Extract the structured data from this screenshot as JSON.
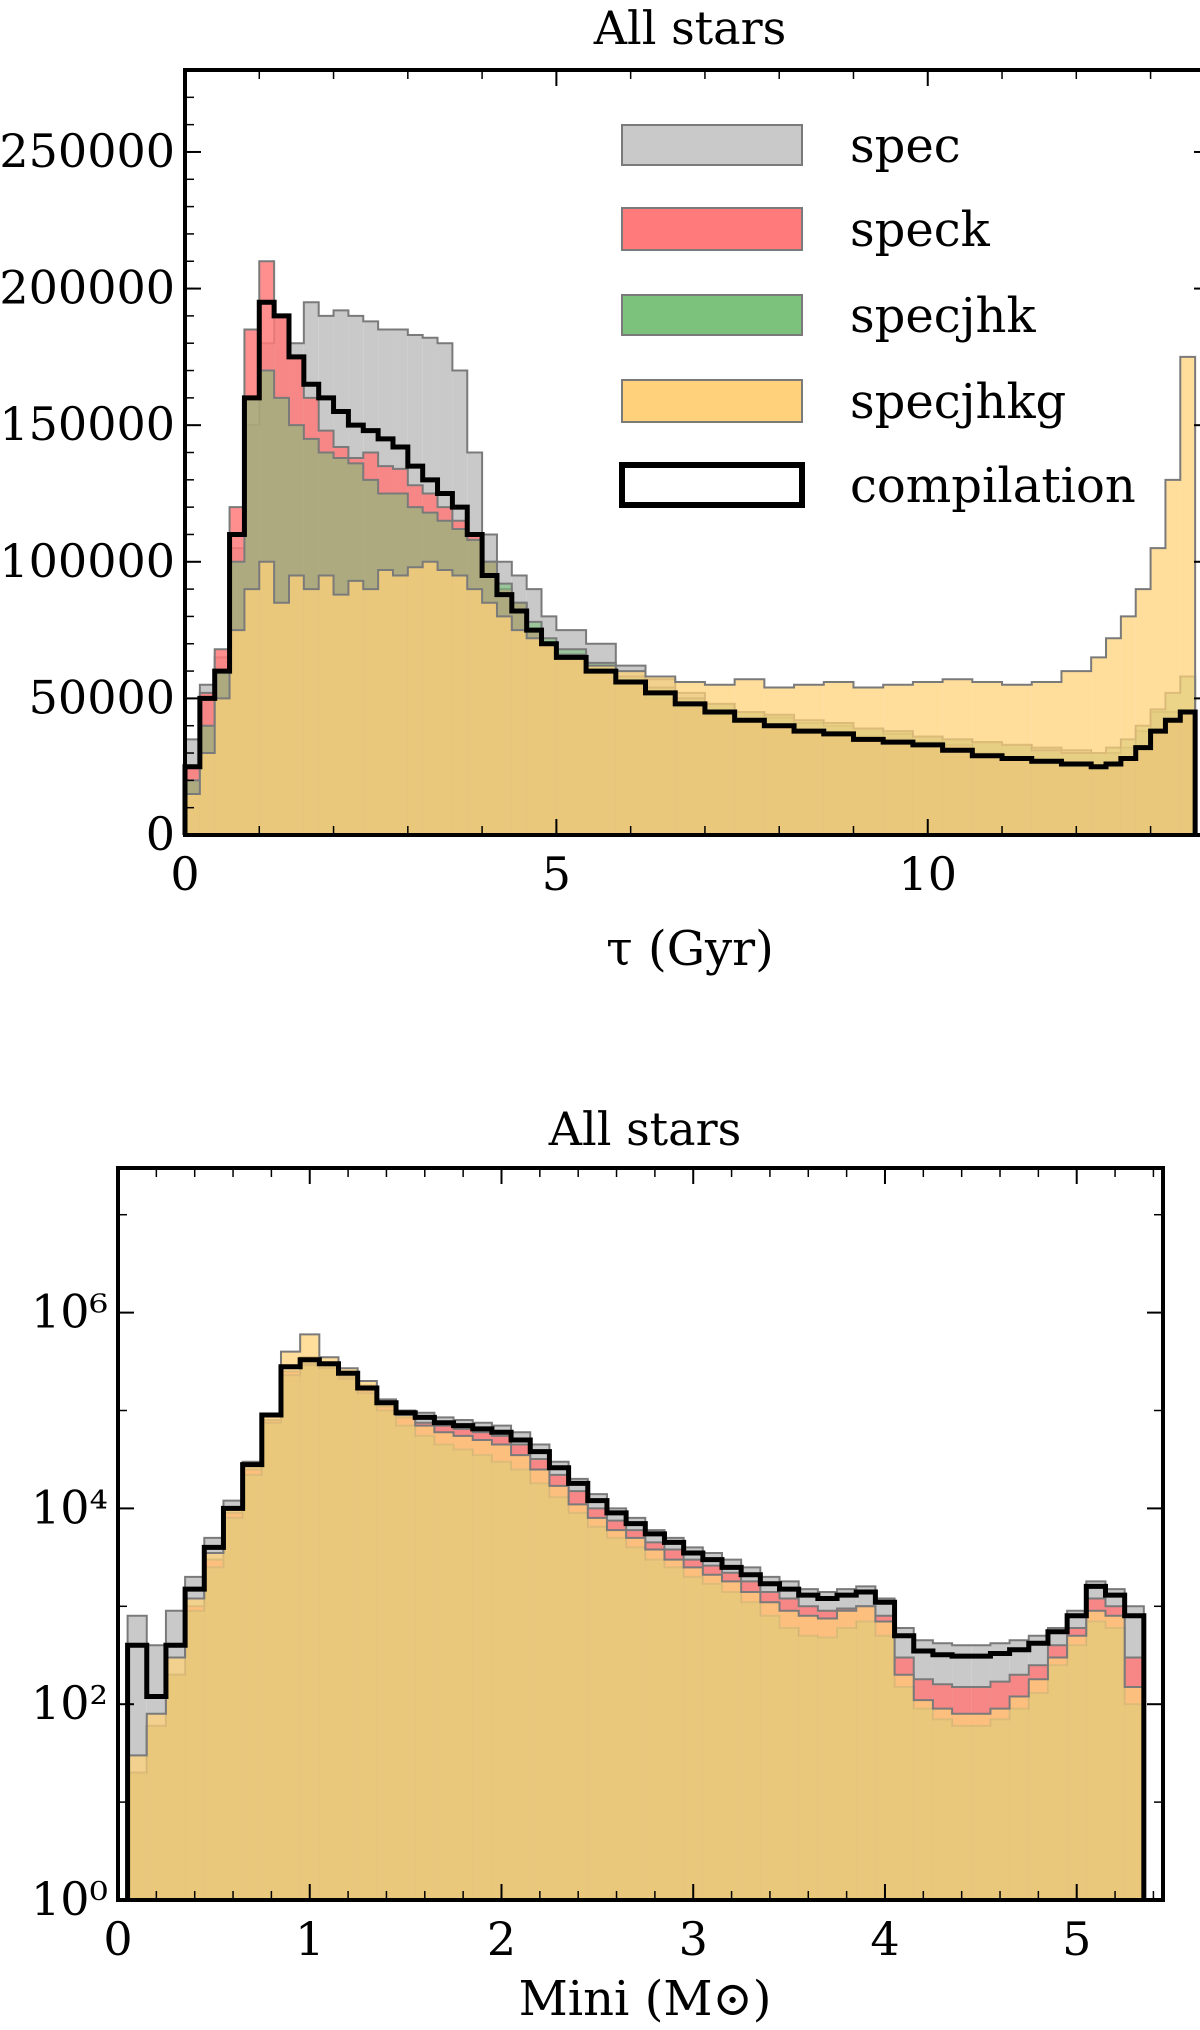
{
  "figure": {
    "colors": {
      "spec": "#c9c9c9",
      "speck": "#ff7b7b",
      "specjhk": "#7cc27c",
      "specjhkg": "#ffd17a",
      "compilation": "#000000",
      "edge": "#7a7a7a"
    }
  },
  "chart_data": [
    {
      "type": "area",
      "title": "All stars",
      "xlabel": "τ (Gyr)",
      "ylabel": "",
      "xlim": [
        0,
        13.8
      ],
      "ylim": [
        0,
        280000
      ],
      "xticks": [
        0,
        5,
        10
      ],
      "yticks": [
        0,
        50000,
        100000,
        150000,
        200000,
        250000
      ],
      "xtick_labels": [
        "0",
        "5",
        "10"
      ],
      "ytick_labels": [
        "0",
        "50000",
        "100000",
        "150000",
        "200000",
        "250000"
      ],
      "legend": {
        "placement": "top-right",
        "entries": [
          "spec",
          "speck",
          "specjhk",
          "specjhkg",
          "compilation"
        ]
      },
      "bin_edges": [
        0,
        0.2,
        0.4,
        0.6,
        0.8,
        1.0,
        1.2,
        1.4,
        1.6,
        1.8,
        2.0,
        2.2,
        2.4,
        2.6,
        2.8,
        3.0,
        3.2,
        3.4,
        3.6,
        3.8,
        4.0,
        4.2,
        4.4,
        4.6,
        4.8,
        5.0,
        5.4,
        5.8,
        6.2,
        6.6,
        7.0,
        7.4,
        7.8,
        8.2,
        8.6,
        9.0,
        9.4,
        9.8,
        10.2,
        10.6,
        11.0,
        11.4,
        11.8,
        12.2,
        12.4,
        12.6,
        12.8,
        13.0,
        13.2,
        13.4,
        13.6
      ],
      "series": [
        {
          "name": "spec",
          "values": [
            35000,
            55000,
            65000,
            105000,
            150000,
            180000,
            190000,
            180000,
            195000,
            190000,
            192000,
            190000,
            188000,
            185000,
            185000,
            183000,
            182000,
            180000,
            170000,
            140000,
            110000,
            100000,
            95000,
            90000,
            80000,
            75000,
            70000,
            62000,
            57000,
            52000,
            48000,
            45000,
            43000,
            41000,
            40000,
            39000,
            37000,
            36000,
            35000,
            34000,
            33000,
            32000,
            31000,
            30000,
            30000,
            32000,
            38000,
            45000,
            45000,
            45000
          ]
        },
        {
          "name": "speck",
          "values": [
            25000,
            52000,
            68000,
            120000,
            185000,
            210000,
            190000,
            175000,
            160000,
            148000,
            142000,
            138000,
            140000,
            135000,
            134000,
            128000,
            125000,
            120000,
            115000,
            110000,
            100000,
            90000,
            85000,
            75000,
            70000,
            65000,
            60000,
            56000,
            50000,
            47000,
            44000,
            42000,
            40000,
            38000,
            37000,
            36000,
            35000,
            34000,
            33000,
            30000,
            28000,
            26000,
            25000,
            24000,
            25000,
            28000,
            32000,
            38000,
            42000,
            45000
          ]
        },
        {
          "name": "specjhk",
          "values": [
            20000,
            40000,
            60000,
            100000,
            160000,
            170000,
            160000,
            150000,
            145000,
            140000,
            138000,
            136000,
            130000,
            125000,
            125000,
            120000,
            118000,
            115000,
            112000,
            108000,
            100000,
            92000,
            85000,
            78000,
            72000,
            68000,
            63000,
            58000,
            54000,
            50000,
            48000,
            45000,
            44000,
            42000,
            41000,
            39000,
            38000,
            36000,
            35000,
            34000,
            33000,
            31000,
            30000,
            30000,
            32000,
            35000,
            40000,
            46000,
            52000,
            58000
          ]
        },
        {
          "name": "specjhkg",
          "values": [
            15000,
            30000,
            50000,
            75000,
            90000,
            100000,
            85000,
            95000,
            90000,
            95000,
            88000,
            93000,
            90000,
            97000,
            95000,
            98000,
            100000,
            97000,
            95000,
            90000,
            85000,
            80000,
            75000,
            72000,
            70000,
            66000,
            62000,
            60000,
            58000,
            56000,
            55000,
            57000,
            54000,
            55000,
            56000,
            54000,
            55000,
            56000,
            57000,
            56000,
            55000,
            56000,
            60000,
            65000,
            72000,
            80000,
            90000,
            105000,
            130000,
            175000
          ]
        },
        {
          "name": "compilation",
          "values": [
            25000,
            50000,
            60000,
            110000,
            160000,
            195000,
            190000,
            175000,
            165000,
            160000,
            155000,
            150000,
            148000,
            145000,
            142000,
            135000,
            130000,
            125000,
            120000,
            110000,
            95000,
            88000,
            82000,
            75000,
            70000,
            65000,
            60000,
            56000,
            52000,
            48000,
            45000,
            42000,
            40000,
            38000,
            37000,
            35000,
            34000,
            33000,
            31000,
            29000,
            28000,
            27000,
            26000,
            25000,
            26000,
            28000,
            32000,
            38000,
            42000,
            45000
          ]
        }
      ]
    },
    {
      "type": "area",
      "title": "All stars",
      "xlabel": "Mini (M⊙)",
      "ylabel": "",
      "xlim": [
        0,
        5.45
      ],
      "ylim": [
        1,
        30000000
      ],
      "yscale": "log",
      "xticks": [
        0,
        1,
        2,
        3,
        4,
        5
      ],
      "yticks": [
        1,
        100,
        10000,
        1000000
      ],
      "xtick_labels": [
        "0",
        "1",
        "2",
        "3",
        "4",
        "5"
      ],
      "ytick_labels": [
        "10⁰",
        "10²",
        "10⁴",
        "10⁶"
      ],
      "bin_edges": [
        0.05,
        0.15,
        0.25,
        0.35,
        0.45,
        0.55,
        0.65,
        0.75,
        0.85,
        0.95,
        1.05,
        1.15,
        1.25,
        1.35,
        1.45,
        1.55,
        1.65,
        1.75,
        1.85,
        1.95,
        2.05,
        2.15,
        2.25,
        2.35,
        2.45,
        2.55,
        2.65,
        2.75,
        2.85,
        2.95,
        3.05,
        3.15,
        3.25,
        3.35,
        3.45,
        3.55,
        3.65,
        3.75,
        3.85,
        3.95,
        4.05,
        4.15,
        4.25,
        4.35,
        4.45,
        4.55,
        4.65,
        4.75,
        4.85,
        4.95,
        5.05,
        5.15,
        5.25,
        5.35
      ],
      "series": [
        {
          "name": "spec",
          "values": [
            800,
            400,
            900,
            2000,
            5000,
            12000,
            30000,
            80000,
            200000,
            350000,
            300000,
            250000,
            180000,
            120000,
            100000,
            95000,
            85000,
            80000,
            75000,
            70000,
            60000,
            45000,
            30000,
            20000,
            14000,
            10000,
            8000,
            6000,
            5000,
            4000,
            3500,
            3000,
            2500,
            2000,
            1800,
            1500,
            1400,
            1500,
            1600,
            1200,
            600,
            450,
            420,
            400,
            400,
            420,
            450,
            500,
            600,
            900,
            1800,
            1500,
            1000
          ]
        },
        {
          "name": "speck",
          "values": [
            20,
            60,
            200,
            1000,
            3000,
            9000,
            25000,
            80000,
            250000,
            300000,
            280000,
            220000,
            160000,
            110000,
            85000,
            75000,
            70000,
            65000,
            60000,
            55000,
            45000,
            32000,
            22000,
            15000,
            10000,
            7500,
            6000,
            4500,
            3800,
            3000,
            2600,
            2200,
            1800,
            1400,
            1200,
            1000,
            900,
            950,
            1000,
            800,
            300,
            180,
            160,
            150,
            150,
            170,
            200,
            250,
            400,
            600,
            1200,
            1000,
            300
          ]
        },
        {
          "name": "specjhk",
          "values": [
            20,
            60,
            200,
            900,
            2500,
            8000,
            22000,
            75000,
            230000,
            290000,
            270000,
            210000,
            150000,
            100000,
            70000,
            55000,
            45000,
            40000,
            35000,
            30000,
            25000,
            18000,
            13000,
            9000,
            6500,
            5000,
            4000,
            3000,
            2500,
            2000,
            1700,
            1400,
            1100,
            800,
            600,
            500,
            480,
            600,
            700,
            500,
            150,
            90,
            70,
            60,
            60,
            70,
            90,
            130,
            250,
            400,
            700,
            600,
            100
          ]
        },
        {
          "name": "specjhkg",
          "values": [
            30,
            80,
            300,
            1200,
            3500,
            10000,
            28000,
            90000,
            400000,
            600000,
            350000,
            270000,
            200000,
            130000,
            90000,
            70000,
            60000,
            55000,
            50000,
            45000,
            35000,
            25000,
            17000,
            11000,
            8000,
            6000,
            5000,
            3800,
            3000,
            2500,
            2100,
            1800,
            1400,
            1100,
            900,
            800,
            750,
            900,
            1000,
            700,
            200,
            110,
            90,
            80,
            80,
            90,
            120,
            180,
            300,
            500,
            900,
            800,
            150
          ]
        },
        {
          "name": "compilation",
          "values": [
            400,
            120,
            400,
            1500,
            4000,
            10000,
            28000,
            90000,
            280000,
            330000,
            300000,
            240000,
            170000,
            120000,
            95000,
            85000,
            75000,
            70000,
            65000,
            60000,
            50000,
            38000,
            26000,
            18000,
            12000,
            9000,
            7000,
            5500,
            4500,
            3500,
            3000,
            2500,
            2100,
            1700,
            1500,
            1300,
            1200,
            1300,
            1400,
            1100,
            500,
            350,
            320,
            310,
            310,
            330,
            360,
            420,
            550,
            800,
            1600,
            1300,
            800
          ]
        }
      ]
    }
  ]
}
